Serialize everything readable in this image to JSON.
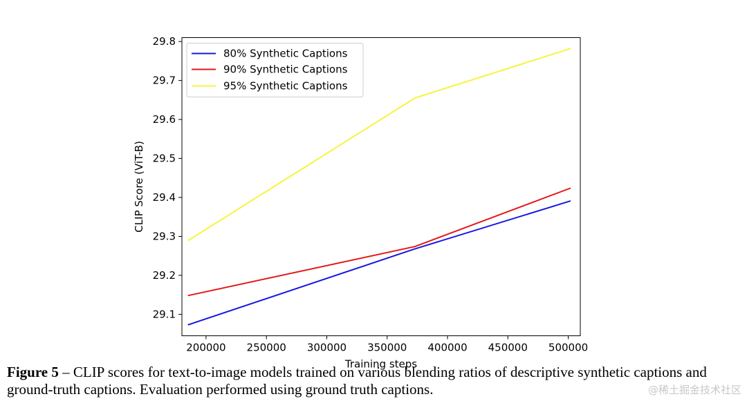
{
  "chart_data": {
    "type": "line",
    "title": "",
    "xlabel": "Training steps",
    "ylabel": "CLIP Score (ViT-B)",
    "xlim": [
      180000,
      510000
    ],
    "ylim": [
      29.045,
      29.81
    ],
    "xticks": [
      200000,
      250000,
      300000,
      350000,
      400000,
      450000,
      500000
    ],
    "xtick_labels": [
      "200000",
      "250000",
      "300000",
      "350000",
      "400000",
      "450000",
      "500000"
    ],
    "yticks": [
      29.1,
      29.2,
      29.3,
      29.4,
      29.5,
      29.6,
      29.7,
      29.8
    ],
    "ytick_labels": [
      "29.1",
      "29.2",
      "29.3",
      "29.4",
      "29.5",
      "29.6",
      "29.7",
      "29.8"
    ],
    "grid": false,
    "legend_position": "top-left",
    "x": [
      185000,
      373000,
      502000
    ],
    "series": [
      {
        "name": "80% Synthetic Captions",
        "color": "#1515e0",
        "values": [
          29.073,
          29.268,
          29.391
        ]
      },
      {
        "name": "90% Synthetic Captions",
        "color": "#e61515",
        "values": [
          29.148,
          29.274,
          29.424
        ]
      },
      {
        "name": "95% Synthetic Captions",
        "color": "#f5f53a",
        "values": [
          29.289,
          29.655,
          29.782
        ]
      }
    ]
  },
  "caption": {
    "label": "Figure 5",
    "text": " – CLIP scores for text-to-image models trained on various blending ratios of descriptive synthetic captions and ground-truth captions. Evaluation performed using ground truth captions."
  },
  "watermark": "@稀土掘金技术社区"
}
